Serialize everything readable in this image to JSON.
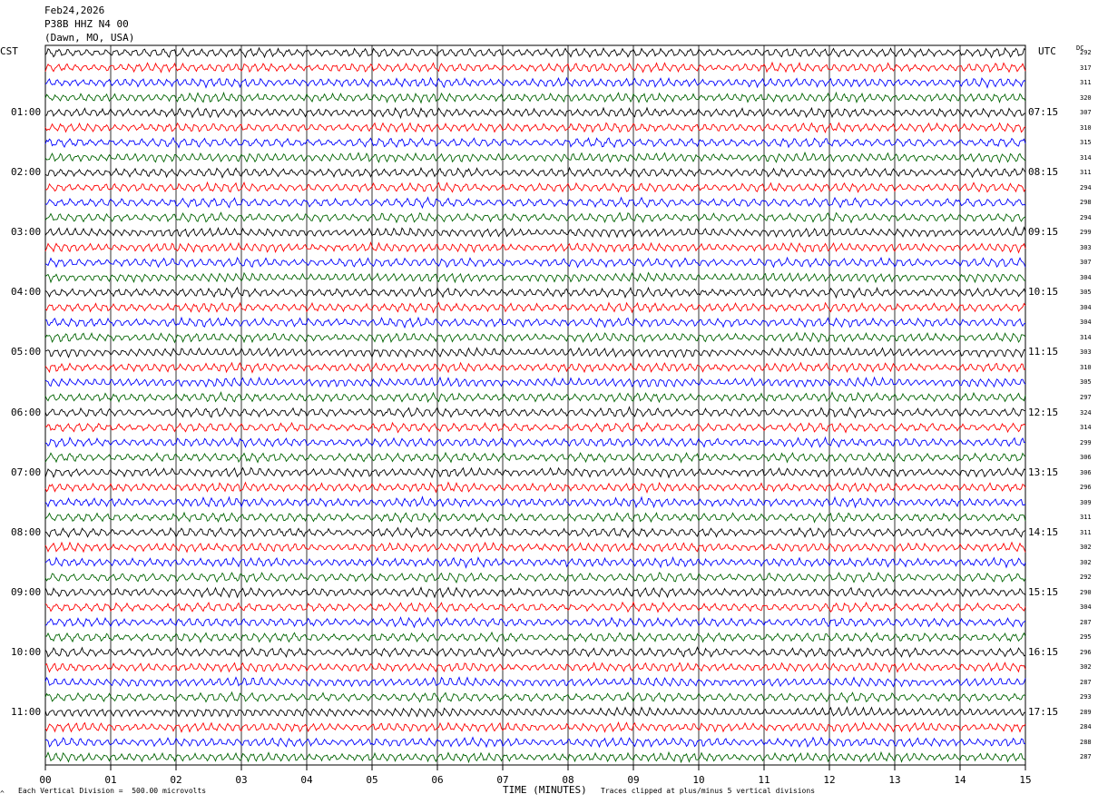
{
  "header": {
    "date": "Feb24,2026",
    "station": "P38B HHZ N4 00",
    "location": "(Dawn, MO, USA)"
  },
  "left_zone": "CST",
  "right_zone": "UTC",
  "dc_label": "DC",
  "footer": {
    "scale_text": "Each Vertical Division =  500.00 microvolts",
    "xlabel": "TIME (MINUTES)",
    "clip_text": "Traces clipped at plus/minus 5 vertical divisions",
    "corner_mark": "^"
  },
  "colors": {
    "trace_cycle": [
      "#000000",
      "#ff0000",
      "#0000ff",
      "#006400"
    ],
    "grid": "#000000"
  },
  "chart_data": {
    "type": "line",
    "description_kind": "helicorder",
    "xlabel": "TIME (MINUTES)",
    "xlim": [
      0,
      15
    ],
    "x_ticks": [
      "00",
      "01",
      "02",
      "03",
      "04",
      "05",
      "06",
      "07",
      "08",
      "09",
      "10",
      "11",
      "12",
      "13",
      "14",
      "15"
    ],
    "left_time_labels": [
      "01:00",
      "02:00",
      "03:00",
      "04:00",
      "05:00",
      "06:00",
      "07:00",
      "08:00",
      "09:00",
      "10:00",
      "11:00"
    ],
    "right_time_labels": [
      "07:15",
      "08:15",
      "09:15",
      "10:15",
      "11:15",
      "12:15",
      "13:15",
      "14:15",
      "15:15",
      "16:15",
      "17:15"
    ],
    "dc_offsets": [
      292,
      317,
      311,
      320,
      307,
      310,
      315,
      314,
      311,
      294,
      298,
      294,
      299,
      303,
      307,
      304,
      305,
      304,
      304,
      314,
      303,
      310,
      305,
      297,
      324,
      314,
      299,
      306,
      306,
      296,
      309,
      311,
      311,
      302,
      302,
      292,
      290,
      304,
      287,
      295,
      296,
      302,
      287,
      293,
      289,
      284,
      288,
      287
    ],
    "rows": 48,
    "clip_divisions": 5,
    "units": "microvolts",
    "vertical_division": 500.0
  }
}
